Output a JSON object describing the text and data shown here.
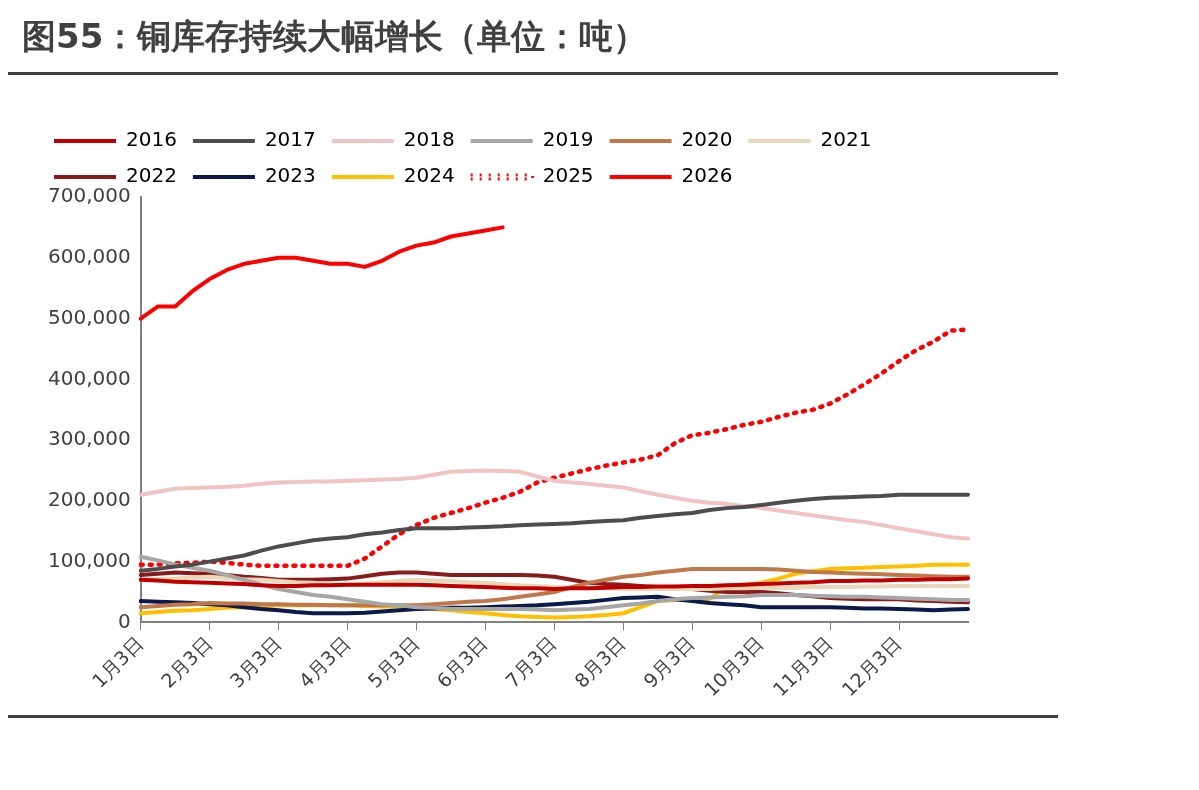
{
  "chart_data": {
    "type": "line",
    "title": "图55：铜库存持续大幅增长（单位：吨）",
    "categories": [
      "1月3日",
      null,
      null,
      null,
      "2月3日",
      null,
      null,
      null,
      "3月3日",
      null,
      null,
      null,
      "4月3日",
      null,
      null,
      null,
      "5月3日",
      null,
      null,
      null,
      "6月3日",
      null,
      null,
      null,
      "7月3日",
      null,
      null,
      null,
      "8月3日",
      null,
      null,
      null,
      "9月3日",
      null,
      null,
      null,
      "10月3日",
      null,
      null,
      null,
      "11月3日",
      null,
      null,
      null,
      "12月3日",
      null,
      null,
      null,
      null
    ],
    "ylim": [
      0,
      700000
    ],
    "yticks": [
      0,
      {
        "value": 100000,
        "label": "100,000"
      },
      {
        "value": 200000,
        "label": "200,000"
      },
      {
        "value": 300000,
        "label": "300,000"
      },
      {
        "value": 400000,
        "label": "400,000"
      },
      {
        "value": 500000,
        "label": "500,000"
      },
      {
        "value": 600000,
        "label": "600,000"
      },
      {
        "value": 700000,
        "label": "700,000"
      }
    ],
    "grid": false,
    "legend": "top",
    "line_style": "solid",
    "marker": "none",
    "series": [
      {
        "name": "2016",
        "color": "#c00000",
        "values": [
          70000,
          69000,
          67000,
          66000,
          65000,
          64000,
          63000,
          61000,
          60000,
          60000,
          61000,
          61000,
          62000,
          62000,
          62000,
          62000,
          62000,
          61000,
          60000,
          59000,
          58000,
          57000,
          56000,
          56000,
          55000,
          56000,
          56000,
          57000,
          58000,
          58000,
          59000,
          59000,
          60000,
          60000,
          61000,
          62000,
          63000,
          64000,
          65000,
          66000,
          68000,
          68000,
          69000,
          69000,
          70000,
          70000,
          71000,
          71000,
          72000
        ]
      },
      {
        "name": "2017",
        "color": "#4d4d4d",
        "values": [
          85000,
          88000,
          92000,
          95000,
          100000,
          105000,
          110000,
          118000,
          125000,
          130000,
          135000,
          138000,
          140000,
          145000,
          148000,
          152000,
          155000,
          155000,
          155000,
          156000,
          157000,
          158000,
          160000,
          161000,
          162000,
          163000,
          165000,
          167000,
          168000,
          172000,
          175000,
          178000,
          180000,
          185000,
          188000,
          190000,
          193000,
          197000,
          200000,
          203000,
          205000,
          206000,
          207000,
          208000,
          210000,
          210000,
          210000,
          210000,
          210000
        ]
      },
      {
        "name": "2018",
        "color": "#f0c4c4",
        "values": [
          210000,
          215000,
          220000,
          221000,
          222000,
          223000,
          225000,
          228000,
          230000,
          231000,
          232000,
          232000,
          233000,
          234000,
          235000,
          236000,
          238000,
          243000,
          248000,
          249000,
          250000,
          249000,
          248000,
          240000,
          233000,
          230000,
          228000,
          225000,
          222000,
          216000,
          210000,
          205000,
          200000,
          197000,
          195000,
          191000,
          188000,
          184000,
          180000,
          176000,
          172000,
          168000,
          165000,
          160000,
          155000,
          150000,
          145000,
          140000,
          138000
        ]
      },
      {
        "name": "2019",
        "color": "#a6a6a6",
        "values": [
          108000,
          102000,
          95000,
          90000,
          85000,
          78000,
          70000,
          62000,
          55000,
          50000,
          45000,
          42000,
          38000,
          34000,
          30000,
          28000,
          25000,
          24000,
          22000,
          22000,
          22000,
          22000,
          22000,
          21000,
          20000,
          21000,
          22000,
          25000,
          28000,
          31000,
          35000,
          38000,
          40000,
          41000,
          42000,
          43000,
          45000,
          45000,
          45000,
          44000,
          43000,
          42000,
          42000,
          41000,
          40000,
          39000,
          38000,
          37000,
          37000
        ]
      },
      {
        "name": "2020",
        "color": "#c0784a",
        "values": [
          25000,
          27000,
          29000,
          30000,
          32000,
          31000,
          31000,
          30000,
          30000,
          29000,
          29000,
          28000,
          28000,
          28000,
          28000,
          28000,
          28000,
          30000,
          32000,
          34000,
          35000,
          38000,
          42000,
          46000,
          50000,
          58000,
          65000,
          70000,
          75000,
          78000,
          82000,
          85000,
          88000,
          88000,
          88000,
          88000,
          88000,
          87000,
          85000,
          83000,
          82000,
          81000,
          80000,
          79000,
          78000,
          77000,
          76000,
          75000,
          75000
        ]
      },
      {
        "name": "2021",
        "color": "#e8d8b8",
        "values": [
          70000,
          71000,
          72000,
          74000,
          75000,
          73000,
          71000,
          70000,
          68000,
          66000,
          65000,
          63000,
          62000,
          64000,
          66000,
          68000,
          70000,
          69000,
          68000,
          66000,
          65000,
          63000,
          61000,
          60000,
          58000,
          57000,
          56000,
          56000,
          55000,
          55000,
          55000,
          55000,
          55000,
          55000,
          56000,
          56000,
          57000,
          57000,
          57000,
          58000,
          58000,
          58000,
          59000,
          59000,
          60000,
          60000,
          60000,
          60000,
          60000
        ]
      },
      {
        "name": "2022",
        "color": "#8b1a1a",
        "values": [
          78000,
          80000,
          82000,
          81000,
          80000,
          78000,
          75000,
          73000,
          70000,
          70000,
          70000,
          71000,
          72000,
          76000,
          80000,
          82000,
          82000,
          80000,
          78000,
          78000,
          78000,
          78000,
          78000,
          77000,
          75000,
          70000,
          65000,
          63000,
          62000,
          60000,
          58000,
          56000,
          55000,
          52000,
          50000,
          50000,
          50000,
          48000,
          45000,
          43000,
          40000,
          39000,
          38000,
          38000,
          38000,
          36000,
          35000,
          34000,
          33000
        ]
      },
      {
        "name": "2023",
        "color": "#0a1a4a",
        "values": [
          35000,
          34000,
          33000,
          32000,
          30000,
          28000,
          25000,
          22000,
          20000,
          17000,
          15000,
          15000,
          15000,
          16000,
          18000,
          20000,
          22000,
          23000,
          24000,
          24000,
          25000,
          26000,
          27000,
          28000,
          30000,
          32000,
          34000,
          37000,
          40000,
          41000,
          42000,
          38000,
          35000,
          32000,
          30000,
          28000,
          25000,
          25000,
          25000,
          25000,
          25000,
          24000,
          23000,
          23000,
          22000,
          21000,
          20000,
          21000,
          22000
        ]
      },
      {
        "name": "2024",
        "color": "#ffc000",
        "values": [
          15000,
          17000,
          19000,
          20000,
          22000,
          24000,
          25000,
          27000,
          28000,
          28000,
          28000,
          28000,
          28000,
          27000,
          26000,
          26000,
          25000,
          22000,
          20000,
          17000,
          15000,
          12000,
          10000,
          9000,
          8000,
          9000,
          10000,
          12000,
          15000,
          25000,
          35000,
          37000,
          38000,
          38000,
          60000,
          62000,
          65000,
          72000,
          80000,
          84000,
          88000,
          89000,
          90000,
          91000,
          92000,
          93000,
          95000,
          95000,
          95000
        ]
      },
      {
        "name": "2025",
        "color": "#ff0000",
        "line_style": "dotted",
        "values": [
          95000,
          95000,
          97000,
          98000,
          100000,
          98000,
          95000,
          93000,
          93000,
          93000,
          93000,
          93000,
          93000,
          105000,
          125000,
          145000,
          160000,
          172000,
          180000,
          188000,
          197000,
          205000,
          215000,
          230000,
          238000,
          245000,
          252000,
          258000,
          263000,
          268000,
          275000,
          295000,
          308000,
          312000,
          318000,
          325000,
          330000,
          338000,
          345000,
          350000,
          360000,
          375000,
          392000,
          410000,
          430000,
          448000,
          462000,
          480000,
          482000
        ]
      },
      {
        "name": "2026",
        "color": "#ff0000",
        "values": [
          500000,
          520000,
          520000,
          545000,
          565000,
          580000,
          590000,
          595000,
          600000,
          600000,
          595000,
          590000,
          590000,
          585000,
          595000,
          610000,
          620000,
          625000,
          635000,
          640000,
          645000,
          650000,
          null,
          null,
          null,
          null,
          null,
          null,
          null,
          null,
          null,
          null,
          null,
          null,
          null,
          null,
          null,
          null,
          null,
          null,
          null,
          null,
          null,
          null,
          null,
          null,
          null,
          null,
          null
        ]
      }
    ]
  }
}
